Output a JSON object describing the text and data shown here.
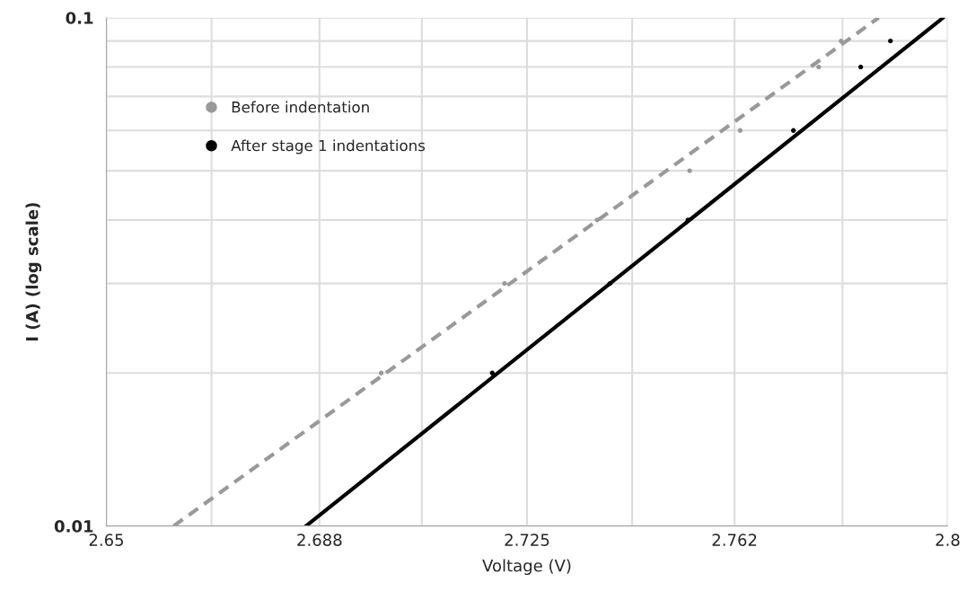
{
  "chart_data": {
    "type": "scatter",
    "xlabel": "Voltage (V)",
    "ylabel": "I (A) (log scale)",
    "log": "y",
    "grid": true,
    "legend": "top left",
    "marker": "circle",
    "xlim": [
      2.65,
      2.8
    ],
    "xticks": [
      2.65,
      {
        "value": 2.66875,
        "label": null
      },
      2.688,
      {
        "value": 2.70625,
        "label": null
      },
      2.725,
      {
        "value": 2.74375,
        "label": null
      },
      2.762,
      {
        "value": 2.78125,
        "label": null
      },
      2.8
    ],
    "ylim": [
      0.01,
      0.1
    ],
    "yticks": [
      0.01,
      {
        "value": 0.02,
        "label": null
      },
      {
        "value": 0.03,
        "label": null
      },
      {
        "value": 0.04,
        "label": null
      },
      {
        "value": 0.05,
        "label": null
      },
      {
        "value": 0.06,
        "label": null
      },
      {
        "value": 0.07,
        "label": null
      },
      {
        "value": 0.08,
        "label": null
      },
      {
        "value": 0.09,
        "label": null
      },
      0.1
    ],
    "series": [
      {
        "name": "Before indentation",
        "color": "#999999",
        "x": [
          2.699,
          2.721,
          2.7375,
          2.754,
          2.763,
          2.777,
          2.781
        ],
        "values": [
          0.02,
          0.03,
          0.04,
          0.05,
          0.06,
          0.08,
          0.09
        ]
      },
      {
        "name": "After stage 1 indentations",
        "color": "#000000",
        "x": [
          2.7188,
          2.7398,
          2.7537,
          2.7725,
          2.7845,
          2.7898
        ],
        "values": [
          0.02,
          0.03,
          0.04,
          0.06,
          0.08,
          0.09
        ]
      },
      {
        "type": "line",
        "color": "#999999",
        "line_style": "dashed",
        "marker": "none",
        "x": [
          2.662,
          2.7877
        ],
        "values": [
          0.01,
          0.1
        ]
      },
      {
        "type": "line",
        "color": "#000000",
        "line_style": "solid",
        "marker": "none",
        "x": [
          2.6856,
          2.7992
        ],
        "values": [
          0.01,
          0.1
        ]
      }
    ]
  }
}
